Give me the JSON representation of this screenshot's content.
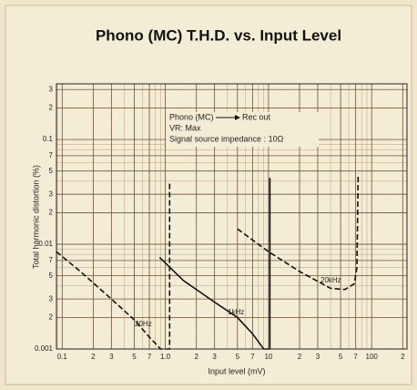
{
  "chart_data": {
    "type": "line",
    "title": "Phono (MC) T.H.D. vs. Input Level",
    "x_label": "Input level (mV)",
    "y_label": "Total harmonic distortion (%)",
    "annotations": [
      "Phono (MC)",
      "Rec out",
      "VR: Max",
      "Signal source impedance : 10Ω"
    ],
    "xscale": "log",
    "yscale": "log",
    "grid": true,
    "xlim": [
      0.088,
      220
    ],
    "ylim": [
      0.001,
      0.34
    ],
    "xticks": [
      0.1,
      {
        "value": 0.2,
        "label": "2"
      },
      {
        "value": 0.3,
        "label": "3"
      },
      {
        "value": 0.5,
        "label": "5"
      },
      {
        "value": 0.7,
        "label": "7"
      },
      {
        "value": 1,
        "label": "1.0"
      },
      2,
      3,
      5,
      7,
      10,
      {
        "value": 20,
        "label": "2"
      },
      {
        "value": 30,
        "label": "3"
      },
      {
        "value": 50,
        "label": "5"
      },
      {
        "value": 70,
        "label": "7"
      },
      100,
      {
        "value": 200,
        "label": "2"
      }
    ],
    "yticks": [
      {
        "value": 0.3,
        "label": "3"
      },
      {
        "value": 0.2,
        "label": "2"
      },
      0.1,
      {
        "value": 0.07,
        "label": "7"
      },
      {
        "value": 0.05,
        "label": "5"
      },
      {
        "value": 0.03,
        "label": "3"
      },
      {
        "value": 0.02,
        "label": "2"
      },
      0.01,
      {
        "value": 0.007,
        "label": "7"
      },
      {
        "value": 0.005,
        "label": "5"
      },
      {
        "value": 0.003,
        "label": "3"
      },
      {
        "value": 0.002,
        "label": "2"
      },
      0.001
    ],
    "series": [
      {
        "name": "20Hz",
        "color": "#111111",
        "line_style": "dashed",
        "x": [
          0.088,
          0.15,
          0.3,
          0.5,
          0.7,
          0.9,
          1.1,
          1.1
        ],
        "values": [
          0.0085,
          0.0055,
          0.003,
          0.0019,
          0.0013,
          0.001,
          0.001,
          0.039
        ]
      },
      {
        "name": "1kHz",
        "color": "#111111",
        "line_style": "solid",
        "x": [
          0.88,
          1.5,
          3,
          5,
          7,
          9,
          10.3,
          10.3
        ],
        "values": [
          0.0075,
          0.0045,
          0.0028,
          0.002,
          0.0014,
          0.001,
          0.001,
          0.043
        ]
      },
      {
        "name": "20kHz",
        "color": "#111111",
        "line_style": "dashed",
        "x": [
          5,
          10,
          20,
          40,
          55,
          68,
          72,
          74
        ],
        "values": [
          0.014,
          0.0085,
          0.0055,
          0.0038,
          0.0037,
          0.0042,
          0.006,
          0.047
        ]
      }
    ]
  }
}
